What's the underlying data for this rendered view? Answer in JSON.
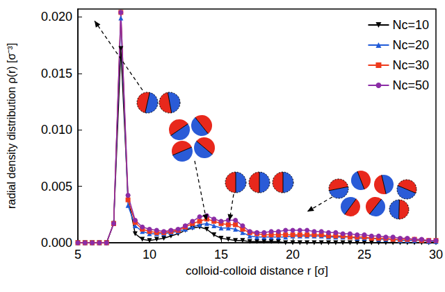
{
  "chart_data": {
    "type": "line",
    "x_label": "colloid-colloid distance r [σ]",
    "y_label": "radial density distribution ρ(r) [σ⁻³]",
    "xlim": [
      5,
      30
    ],
    "xticks": [
      5,
      10,
      15,
      20,
      25,
      30
    ],
    "ylim": [
      0,
      0.0207
    ],
    "yticks": [
      {
        "value": 0,
        "label": "0.000"
      },
      {
        "value": 0.005,
        "label": "0.005"
      },
      {
        "value": 0.01,
        "label": "0.010"
      },
      {
        "value": 0.015,
        "label": "0.015"
      },
      {
        "value": 0.02,
        "label": "0.020"
      }
    ],
    "grid": false,
    "legend": "upper right",
    "x": [
      5,
      5.5,
      6,
      6.5,
      7,
      7.5,
      8,
      8.5,
      9,
      9.5,
      10,
      10.5,
      11,
      11.5,
      12,
      12.5,
      13,
      13.5,
      14,
      14.5,
      15,
      15.5,
      16,
      16.5,
      17,
      17.5,
      18,
      18.5,
      19,
      19.5,
      20,
      20.5,
      21,
      21.5,
      22,
      22.5,
      23,
      23.5,
      24,
      24.5,
      25,
      25.5,
      26,
      26.5,
      27,
      27.5,
      28,
      28.5,
      29,
      29.5,
      30
    ],
    "series": [
      {
        "name": "Nc=10",
        "color": "#000000",
        "marker": "triangle-down",
        "values": [
          0,
          0,
          0,
          0,
          0,
          0.0017,
          0.0172,
          0.004,
          0.0008,
          0.0003,
          0.0002,
          0.0003,
          0.0004,
          0.0006,
          0.0008,
          0.0011,
          0.0013,
          0.0014,
          0.0012,
          0.0007,
          0.0004,
          0.0003,
          0.0002,
          0.0002,
          0.0001,
          0.0001,
          0.0001,
          0.0001,
          0.0001,
          0,
          0,
          0,
          0,
          0,
          0,
          0,
          0,
          0,
          0,
          0,
          0,
          0,
          0,
          0,
          0,
          0,
          0,
          0,
          0,
          0,
          0
        ]
      },
      {
        "name": "Nc=20",
        "color": "#1f5ad8",
        "marker": "triangle",
        "values": [
          0,
          0,
          0,
          0,
          0,
          0.0017,
          0.0199,
          0.0033,
          0.0015,
          0.001,
          0.0008,
          0.0008,
          0.0008,
          0.0009,
          0.001,
          0.0012,
          0.0014,
          0.0016,
          0.0017,
          0.0015,
          0.0013,
          0.0013,
          0.0012,
          0.0009,
          0.0006,
          0.0005,
          0.0005,
          0.0005,
          0.0005,
          0.0005,
          0.0006,
          0.0006,
          0.0006,
          0.0006,
          0.0006,
          0.0005,
          0.0005,
          0.0005,
          0.0005,
          0.0004,
          0.0004,
          0.0004,
          0.0003,
          0.0003,
          0.0003,
          0.0002,
          0.0002,
          0.0002,
          0.0002,
          0.0001,
          0.0001
        ]
      },
      {
        "name": "Nc=30",
        "color": "#ee3a1c",
        "marker": "square",
        "values": [
          0,
          0,
          0,
          0,
          0,
          0.0017,
          0.0204,
          0.0038,
          0.0018,
          0.0012,
          0.001,
          0.0009,
          0.0009,
          0.001,
          0.0011,
          0.0014,
          0.0017,
          0.0019,
          0.0021,
          0.0019,
          0.0017,
          0.0016,
          0.0016,
          0.0012,
          0.0009,
          0.0008,
          0.0007,
          0.0007,
          0.0007,
          0.0007,
          0.0007,
          0.0007,
          0.0007,
          0.0007,
          0.0007,
          0.0006,
          0.0006,
          0.0006,
          0.0005,
          0.0005,
          0.0005,
          0.0004,
          0.0004,
          0.0004,
          0.0003,
          0.0003,
          0.0003,
          0.0003,
          0.0002,
          0.0002,
          0.0002
        ]
      },
      {
        "name": "Nc=50",
        "color": "#8b2ca6",
        "marker": "circle",
        "values": [
          0,
          0,
          0,
          0,
          0,
          0.0017,
          0.0204,
          0.0042,
          0.002,
          0.0014,
          0.0012,
          0.0011,
          0.001,
          0.0011,
          0.0012,
          0.0015,
          0.0019,
          0.0023,
          0.0024,
          0.0021,
          0.0019,
          0.002,
          0.002,
          0.0015,
          0.001,
          0.0009,
          0.0009,
          0.001,
          0.001,
          0.0011,
          0.0011,
          0.0011,
          0.0011,
          0.001,
          0.001,
          0.0009,
          0.0009,
          0.0008,
          0.0008,
          0.0007,
          0.0007,
          0.0006,
          0.0006,
          0.0005,
          0.0005,
          0.0004,
          0.0004,
          0.0003,
          0.0003,
          0.0002,
          0.0002
        ]
      }
    ]
  }
}
